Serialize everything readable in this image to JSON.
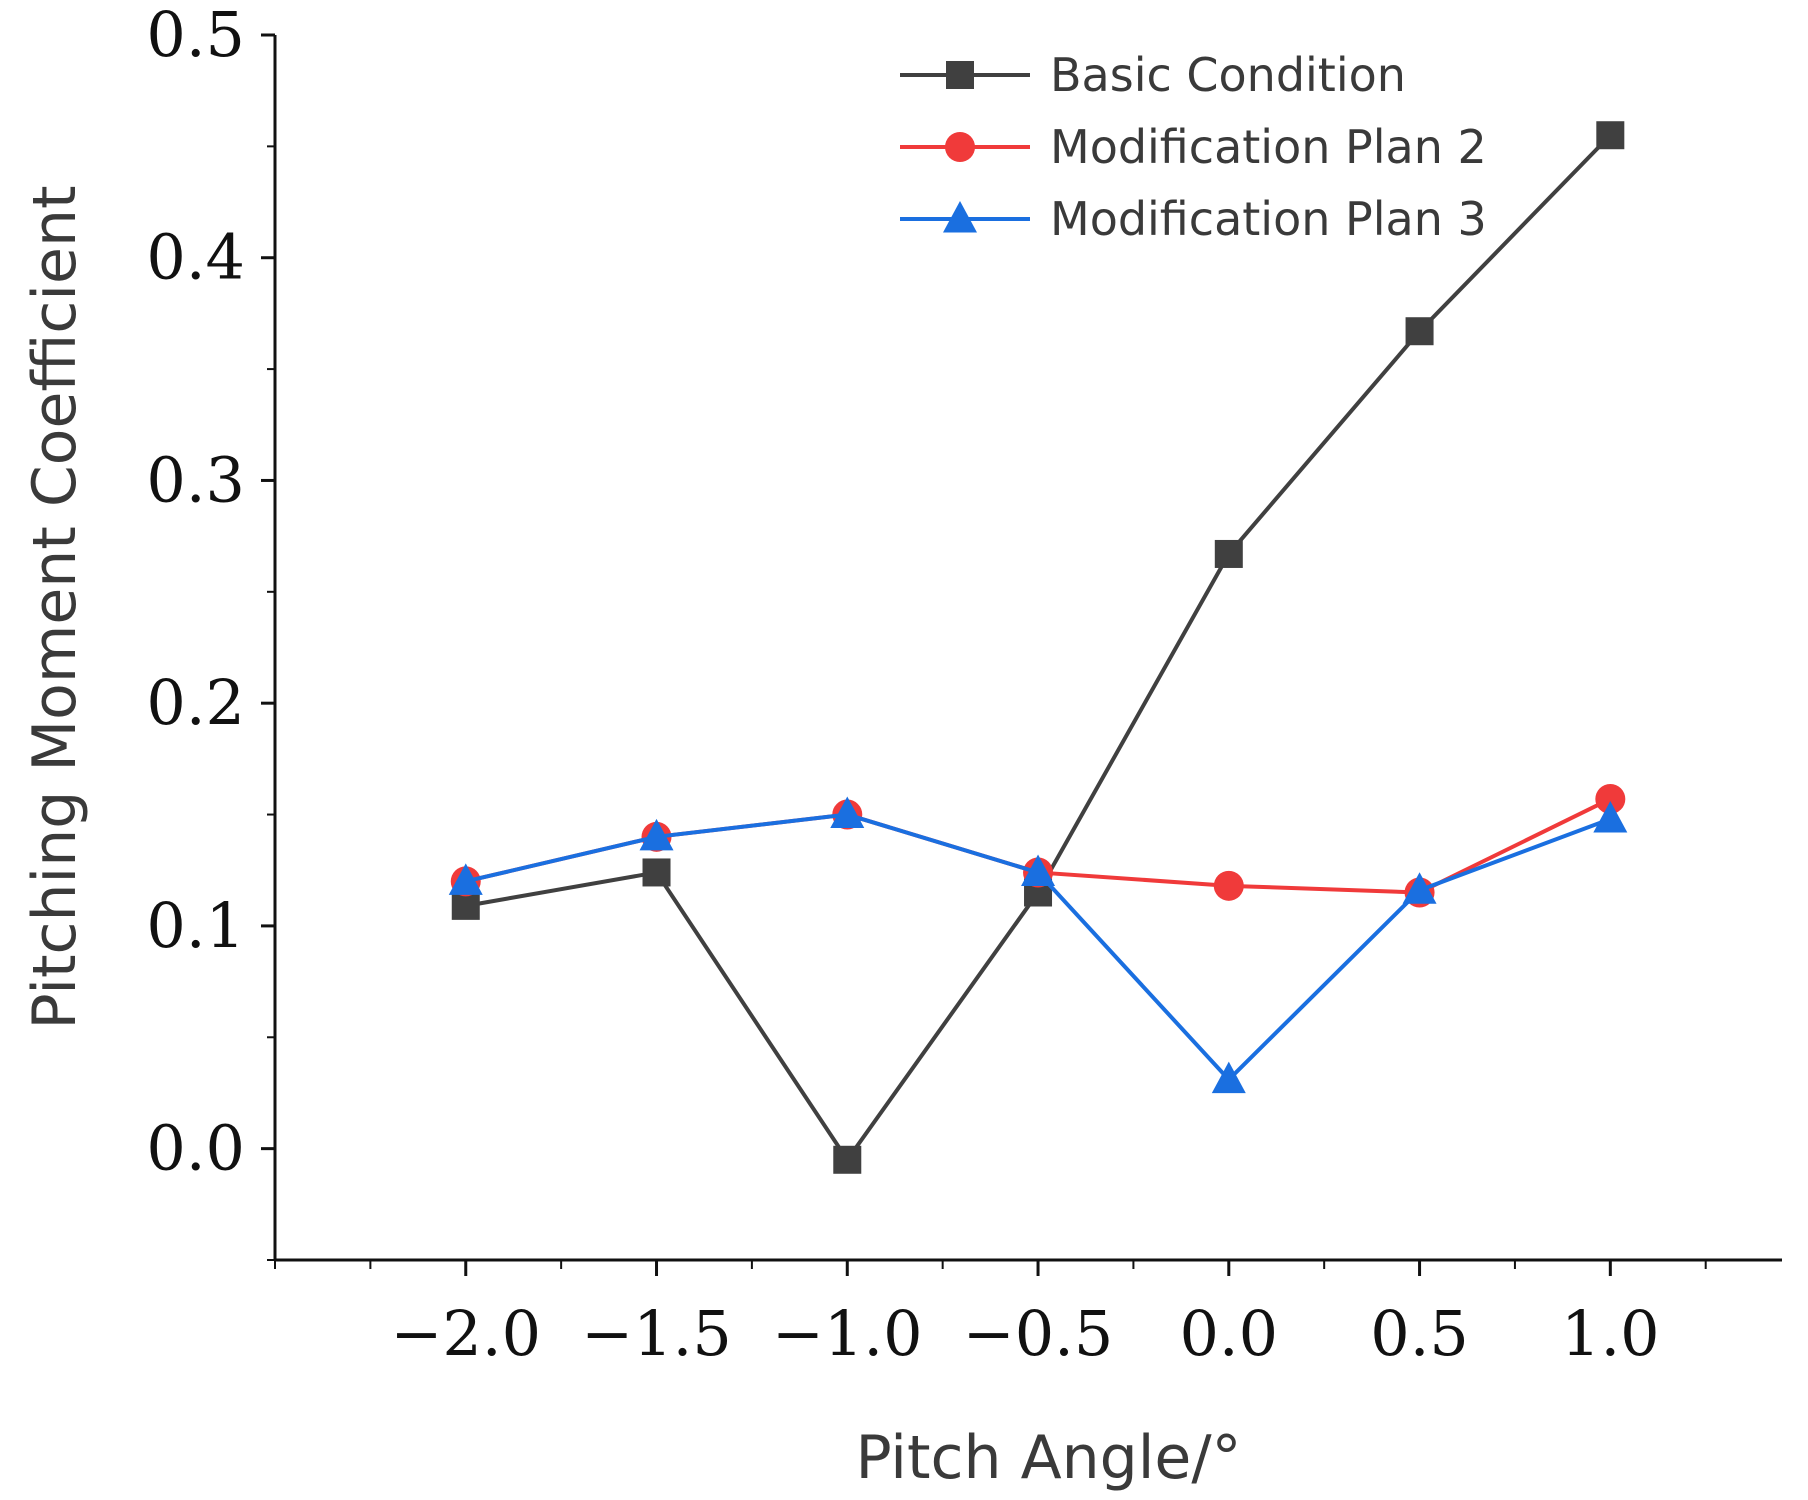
{
  "chart_data": {
    "type": "line",
    "title": "",
    "xlabel": "Pitch Angle/°",
    "ylabel": "Pitching Moment Coefficient",
    "xlim": [
      -2.5,
      1.45
    ],
    "ylim": [
      -0.05,
      0.5
    ],
    "x": [
      -2.0,
      -1.5,
      -1.0,
      -0.5,
      0.0,
      0.5,
      1.0
    ],
    "x_tick_labels": [
      "−2.0",
      "−1.5",
      "−1.0",
      "−0.5",
      "0.0",
      "0.5",
      "1.0"
    ],
    "y_ticks": [
      0.0,
      0.1,
      0.2,
      0.3,
      0.4,
      0.5
    ],
    "y_tick_labels": [
      "0.0",
      "0.1",
      "0.2",
      "0.3",
      "0.4",
      "0.5"
    ],
    "legend_position": "top-right",
    "grid": false,
    "series": [
      {
        "name": "Basic Condition",
        "marker": "square",
        "color": "#404040",
        "values": [
          0.109,
          0.124,
          -0.005,
          0.115,
          0.267,
          0.367,
          0.455
        ]
      },
      {
        "name": "Modification Plan 2",
        "marker": "circle",
        "color": "#f03a3a",
        "values": [
          0.12,
          0.14,
          0.15,
          0.124,
          0.118,
          0.115,
          0.157
        ]
      },
      {
        "name": "Modification Plan 3",
        "marker": "triangle",
        "color": "#1a6fe0",
        "values": [
          0.12,
          0.14,
          0.15,
          0.124,
          0.031,
          0.116,
          0.148
        ]
      }
    ]
  }
}
